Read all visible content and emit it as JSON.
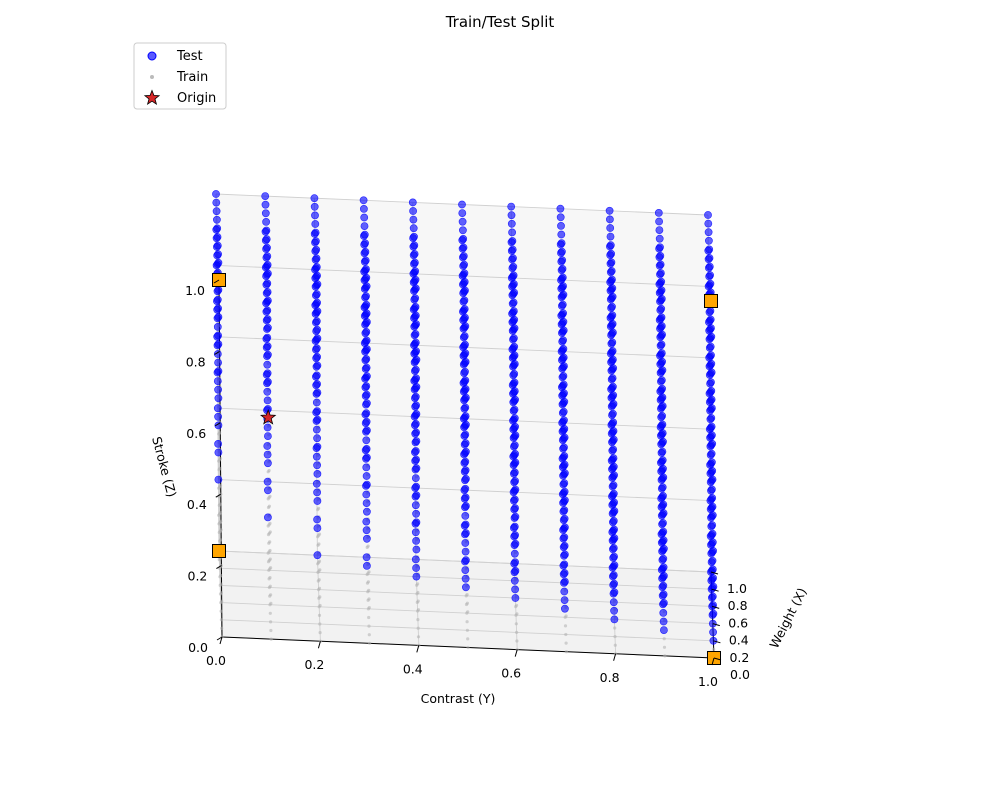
{
  "chart_data": {
    "type": "scatter",
    "projection": "3d",
    "title": "Train/Test Split",
    "xlabel": "Weight (X)",
    "ylabel": "Contrast (Y)",
    "zlabel": "Stroke (Z)",
    "xlim": [
      0,
      1
    ],
    "ylim": [
      0,
      1
    ],
    "zlim": [
      0,
      1
    ],
    "x_ticks": [
      "0.0",
      "0.2",
      "0.4",
      "0.6",
      "0.8",
      "1.0"
    ],
    "y_ticks": [
      "0.0",
      "0.2",
      "0.4",
      "0.6",
      "0.8",
      "1.0"
    ],
    "z_ticks": [
      "0.0",
      "0.2",
      "0.4",
      "0.6",
      "0.8",
      "1.0"
    ],
    "grid": true,
    "legend_position": "top-left",
    "grid_points_per_axis": 11,
    "series": [
      {
        "name": "Test",
        "marker": "circle",
        "color": "#0000ff",
        "rule": "grid points with Weight + Contrast + Stroke >= 1.2 (upper region of the cube)"
      },
      {
        "name": "Train",
        "marker": "small dot",
        "color": "#b0b0b0",
        "rule": "remaining grid points"
      },
      {
        "name": "Origin",
        "marker": "star",
        "color": "#d62728",
        "points": [
          {
            "x": 0.5,
            "y": 0.1,
            "z": 0.5
          }
        ]
      },
      {
        "name": "",
        "marker": "square",
        "color": "#ffa500",
        "points": [
          {
            "x": 0,
            "y": 0,
            "z": 1
          },
          {
            "x": 1,
            "y": 0,
            "z": 0
          },
          {
            "x": 0,
            "y": 1,
            "z": 0
          },
          {
            "x": 0,
            "y": 1,
            "z": 1
          }
        ]
      }
    ]
  }
}
